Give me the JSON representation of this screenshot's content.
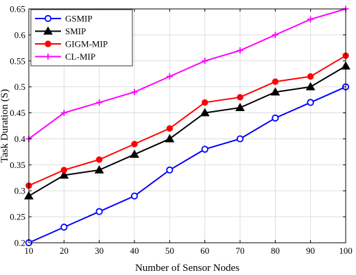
{
  "chart_data": {
    "type": "line",
    "title": "",
    "xlabel": "Number of Sensor Nodes",
    "ylabel": "Task Duration (S)",
    "x": [
      10,
      20,
      30,
      40,
      50,
      60,
      70,
      80,
      90,
      100
    ],
    "xlim": [
      10,
      100
    ],
    "ylim": [
      0.2,
      0.65
    ],
    "xticks": [
      10,
      20,
      30,
      40,
      50,
      60,
      70,
      80,
      90,
      100
    ],
    "yticks": [
      0.2,
      0.25,
      0.3,
      0.35,
      0.4,
      0.45,
      0.5,
      0.55,
      0.6,
      0.65
    ],
    "ytick_labels": [
      "0.2",
      "0.25",
      "0.3",
      "0.35",
      "0.4",
      "0.45",
      "0.5",
      "0.55",
      "0.6",
      "0.65"
    ],
    "grid": true,
    "legend_position": "top-left",
    "series": [
      {
        "name": "GSMIP",
        "color": "#0000ff",
        "marker": "circle-open",
        "values": [
          0.2,
          0.23,
          0.26,
          0.29,
          0.34,
          0.38,
          0.4,
          0.44,
          0.47,
          0.5
        ]
      },
      {
        "name": "SMIP",
        "color": "#000000",
        "marker": "triangle-filled",
        "values": [
          0.29,
          0.33,
          0.34,
          0.37,
          0.4,
          0.45,
          0.46,
          0.49,
          0.5,
          0.54
        ]
      },
      {
        "name": "GIGM-MIP",
        "color": "#ff0000",
        "marker": "circle-filled",
        "values": [
          0.31,
          0.34,
          0.36,
          0.39,
          0.42,
          0.47,
          0.48,
          0.51,
          0.52,
          0.56
        ]
      },
      {
        "name": "CL-MIP",
        "color": "#ff00ff",
        "marker": "plus",
        "values": [
          0.4,
          0.45,
          0.47,
          0.49,
          0.52,
          0.55,
          0.57,
          0.6,
          0.63,
          0.65
        ]
      }
    ]
  }
}
